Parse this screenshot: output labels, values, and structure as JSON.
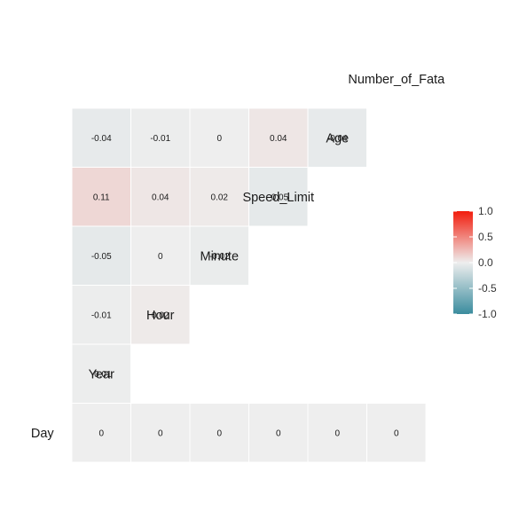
{
  "chart_data": {
    "type": "heatmap",
    "title": "",
    "variables": [
      "Day",
      "Year",
      "Hour",
      "Minute",
      "Speed_Limit",
      "Age",
      "Number_of_Fata"
    ],
    "cells": [
      {
        "row": "Year",
        "col": "Day",
        "value": -0.01,
        "label": "-0.01"
      },
      {
        "row": "Hour",
        "col": "Day",
        "value": -0.01,
        "label": "-0.01"
      },
      {
        "row": "Minute",
        "col": "Day",
        "value": -0.05,
        "label": "-0.05"
      },
      {
        "row": "Speed_Limit",
        "col": "Day",
        "value": 0.11,
        "label": "0.11"
      },
      {
        "row": "Age",
        "col": "Day",
        "value": -0.04,
        "label": "-0.04"
      },
      {
        "row": "Hour",
        "col": "Year",
        "value": 0.02,
        "label": "0.02"
      },
      {
        "row": "Minute",
        "col": "Year",
        "value": 0,
        "label": "0"
      },
      {
        "row": "Speed_Limit",
        "col": "Year",
        "value": 0.04,
        "label": "0.04"
      },
      {
        "row": "Age",
        "col": "Year",
        "value": -0.01,
        "label": "-0.01"
      },
      {
        "row": "Minute",
        "col": "Hour",
        "value": -0.02,
        "label": "-0.02"
      },
      {
        "row": "Speed_Limit",
        "col": "Hour",
        "value": 0.02,
        "label": "0.02"
      },
      {
        "row": "Age",
        "col": "Hour",
        "value": 0,
        "label": "0"
      },
      {
        "row": "Speed_Limit",
        "col": "Minute",
        "value": -0.05,
        "label": "-0.05"
      },
      {
        "row": "Age",
        "col": "Minute",
        "value": 0.04,
        "label": "0.04"
      },
      {
        "row": "Age",
        "col": "Speed_Limit",
        "value": -0.04,
        "label": "-0.04"
      },
      {
        "row": "Day",
        "col": "Day",
        "value": 0,
        "label": "0"
      },
      {
        "row": "Day",
        "col": "Year",
        "value": 0,
        "label": "0"
      },
      {
        "row": "Day",
        "col": "Hour",
        "value": 0,
        "label": "0"
      },
      {
        "row": "Day",
        "col": "Minute",
        "value": 0,
        "label": "0"
      },
      {
        "row": "Day",
        "col": "Speed_Limit",
        "value": 0,
        "label": "0"
      },
      {
        "row": "Day",
        "col": "Age",
        "value": 0,
        "label": "0"
      }
    ],
    "color_scale": {
      "low": "#3a8c9e",
      "mid": "#eeeeee",
      "high": "#f21c0c",
      "limits": [
        -1,
        1
      ],
      "ticks": [
        "-1.0",
        "-0.5",
        "0.0",
        "0.5",
        "1.0"
      ]
    },
    "legend": {
      "position": "right",
      "title": ""
    },
    "grid": false
  }
}
